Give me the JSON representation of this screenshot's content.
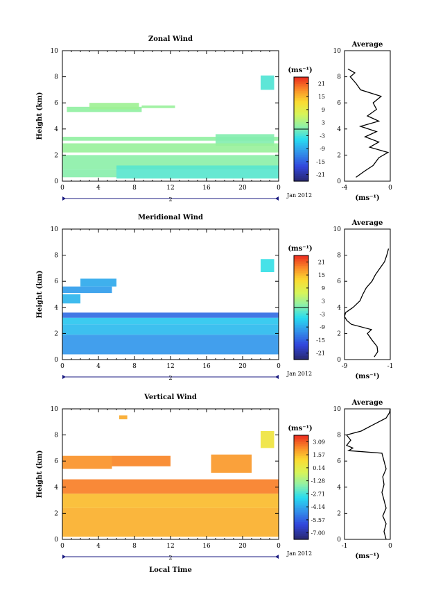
{
  "figure": {
    "xlabel_bottom": "Local Time",
    "date_label": "Jan 2012",
    "day_label": "2",
    "ylabel": "Height (km)",
    "avg_xlabel": "(ms⁻¹)",
    "colorbar_unit": "(ms⁻¹)"
  },
  "chart_data": [
    {
      "type": "heatmap",
      "title": "Zonal Wind",
      "ylabel": "Height (km)",
      "x_ticks": [
        "0",
        "4",
        "8",
        "12",
        "16",
        "20",
        "0"
      ],
      "y_ticks": [
        "0",
        "2",
        "4",
        "6",
        "8",
        "10"
      ],
      "xlim": [
        0,
        24
      ],
      "ylim": [
        0,
        10
      ],
      "colorbar": {
        "unit": "(ms⁻¹)",
        "ticks": [
          "21",
          "15",
          "9",
          "3",
          "-3",
          "-9",
          "-15",
          "-21"
        ],
        "range": [
          -24,
          24
        ]
      },
      "regions": [
        {
          "x": [
            0.5,
            8.8
          ],
          "y": [
            5.3,
            5.7
          ],
          "v": 1.5
        },
        {
          "x": [
            8.8,
            12.5
          ],
          "y": [
            5.6,
            5.8
          ],
          "v": 2.0
        },
        {
          "x": [
            3.0,
            8.5
          ],
          "y": [
            5.5,
            6.0
          ],
          "v": 2.5
        },
        {
          "x": [
            0.0,
            24.0
          ],
          "y": [
            3.1,
            3.4
          ],
          "v": 1.5
        },
        {
          "x": [
            17.0,
            23.5
          ],
          "y": [
            2.7,
            3.6
          ],
          "v": 0.5
        },
        {
          "x": [
            0.0,
            24.0
          ],
          "y": [
            2.2,
            2.9
          ],
          "v": 2.0
        },
        {
          "x": [
            0.0,
            24.0
          ],
          "y": [
            0.9,
            2.0
          ],
          "v": 1.0
        },
        {
          "x": [
            6.0,
            24.0
          ],
          "y": [
            0.2,
            1.2
          ],
          "v": -2.0
        },
        {
          "x": [
            0.0,
            6.0
          ],
          "y": [
            0.3,
            0.9
          ],
          "v": 0.8
        },
        {
          "x": [
            22.0,
            23.5
          ],
          "y": [
            7.0,
            8.1
          ],
          "v": -2.5
        }
      ],
      "average_profile": {
        "title": "Average",
        "xlabel": "(ms⁻¹)",
        "x_ticks": [
          "-4",
          "0"
        ],
        "xlim": [
          -4,
          0
        ],
        "height": [
          0.3,
          0.8,
          1.2,
          1.8,
          2.2,
          2.6,
          3.0,
          3.4,
          3.8,
          4.2,
          4.6,
          5.0,
          5.5,
          6.0,
          6.5,
          7.0,
          7.5,
          8.0,
          8.3,
          8.6
        ],
        "value": [
          -3.0,
          -2.2,
          -1.5,
          -1.0,
          -0.2,
          -1.8,
          -1.0,
          -2.2,
          -1.2,
          -2.6,
          -1.0,
          -2.0,
          -1.2,
          -1.5,
          -0.8,
          -2.6,
          -3.0,
          -3.5,
          -3.1,
          -3.7
        ]
      }
    },
    {
      "type": "heatmap",
      "title": "Meridional Wind",
      "ylabel": "Height (km)",
      "x_ticks": [
        "0",
        "4",
        "8",
        "12",
        "16",
        "20",
        "0"
      ],
      "y_ticks": [
        "0",
        "2",
        "4",
        "6",
        "8",
        "10"
      ],
      "xlim": [
        0,
        24
      ],
      "ylim": [
        0,
        10
      ],
      "colorbar": {
        "unit": "(ms⁻¹)",
        "ticks": [
          "21",
          "15",
          "9",
          "3",
          "-3",
          "-9",
          "-15",
          "-21"
        ],
        "range": [
          -24,
          24
        ]
      },
      "regions": [
        {
          "x": [
            0.0,
            5.5
          ],
          "y": [
            5.1,
            5.6
          ],
          "v": -10.0
        },
        {
          "x": [
            2.0,
            6.0
          ],
          "y": [
            5.6,
            6.2
          ],
          "v": -9.0
        },
        {
          "x": [
            0.0,
            2.0
          ],
          "y": [
            4.3,
            5.0
          ],
          "v": -8.0
        },
        {
          "x": [
            0.0,
            24.0
          ],
          "y": [
            3.2,
            3.6
          ],
          "v": -14.0
        },
        {
          "x": [
            0.0,
            24.0
          ],
          "y": [
            2.7,
            3.2
          ],
          "v": -6.5
        },
        {
          "x": [
            0.0,
            24.0
          ],
          "y": [
            1.9,
            2.7
          ],
          "v": -7.5
        },
        {
          "x": [
            0.0,
            24.0
          ],
          "y": [
            0.4,
            1.9
          ],
          "v": -10.5
        },
        {
          "x": [
            22.0,
            23.5
          ],
          "y": [
            6.7,
            7.7
          ],
          "v": -4.0
        }
      ],
      "average_profile": {
        "title": "Average",
        "xlabel": "(ms⁻¹)",
        "x_ticks": [
          "-9",
          "-1"
        ],
        "xlim": [
          -9,
          -1
        ],
        "height": [
          0.2,
          0.6,
          1.0,
          1.5,
          2.0,
          2.3,
          2.7,
          3.0,
          3.3,
          3.6,
          4.0,
          4.5,
          5.0,
          5.5,
          6.0,
          6.5,
          7.0,
          7.5,
          8.0,
          8.5
        ],
        "value": [
          -3.8,
          -3.2,
          -3.3,
          -4.2,
          -5.0,
          -4.3,
          -7.8,
          -8.6,
          -9.0,
          -8.8,
          -7.5,
          -6.3,
          -5.8,
          -5.2,
          -4.2,
          -3.6,
          -2.8,
          -2.0,
          -1.6,
          -1.3
        ]
      }
    },
    {
      "type": "heatmap",
      "title": "Vertical Wind",
      "xlabel": "Local Time",
      "ylabel": "Height (km)",
      "x_ticks": [
        "0",
        "4",
        "8",
        "12",
        "16",
        "20",
        "0"
      ],
      "y_ticks": [
        "0",
        "2",
        "4",
        "6",
        "8",
        "10"
      ],
      "xlim": [
        0,
        24
      ],
      "ylim": [
        0,
        10
      ],
      "colorbar": {
        "unit": "(ms⁻¹)",
        "ticks": [
          "3.09",
          "1.57",
          "0.14",
          "-1.28",
          "-2.71",
          "-4.14",
          "-5.57",
          "-7.00"
        ],
        "range": [
          -7.7,
          3.8
        ]
      },
      "regions": [
        {
          "x": [
            0.0,
            5.5
          ],
          "y": [
            5.4,
            6.4
          ],
          "v": 2.3
        },
        {
          "x": [
            5.5,
            12.0
          ],
          "y": [
            5.6,
            6.4
          ],
          "v": 2.5
        },
        {
          "x": [
            16.5,
            21.0
          ],
          "y": [
            5.1,
            6.5
          ],
          "v": 2.2
        },
        {
          "x": [
            0.0,
            24.0
          ],
          "y": [
            3.5,
            4.6
          ],
          "v": 2.6
        },
        {
          "x": [
            0.0,
            24.0
          ],
          "y": [
            2.4,
            3.5
          ],
          "v": 1.6
        },
        {
          "x": [
            0.0,
            24.0
          ],
          "y": [
            0.2,
            2.4
          ],
          "v": 1.8
        },
        {
          "x": [
            6.3,
            7.2
          ],
          "y": [
            9.2,
            9.5
          ],
          "v": 1.9
        },
        {
          "x": [
            22.0,
            23.5
          ],
          "y": [
            7.0,
            8.3
          ],
          "v": 0.6
        }
      ],
      "average_profile": {
        "title": "Average",
        "xlabel": "(ms⁻¹)",
        "x_ticks": [
          "-1",
          "0"
        ],
        "xlim": [
          -1,
          0.1
        ],
        "height": [
          0.0,
          0.6,
          1.2,
          1.8,
          2.4,
          3.0,
          3.6,
          4.2,
          4.8,
          5.4,
          6.0,
          6.6,
          6.8,
          7.0,
          7.2,
          7.6,
          8.0,
          8.3,
          8.8,
          9.3,
          9.7,
          10.0
        ],
        "value": [
          0.0,
          -0.05,
          0.0,
          -0.08,
          0.0,
          -0.05,
          -0.1,
          -0.05,
          -0.08,
          0.0,
          -0.05,
          -0.1,
          -0.9,
          -0.8,
          -0.95,
          -0.85,
          -0.95,
          -0.6,
          -0.3,
          0.0,
          0.08,
          0.1
        ]
      }
    }
  ]
}
